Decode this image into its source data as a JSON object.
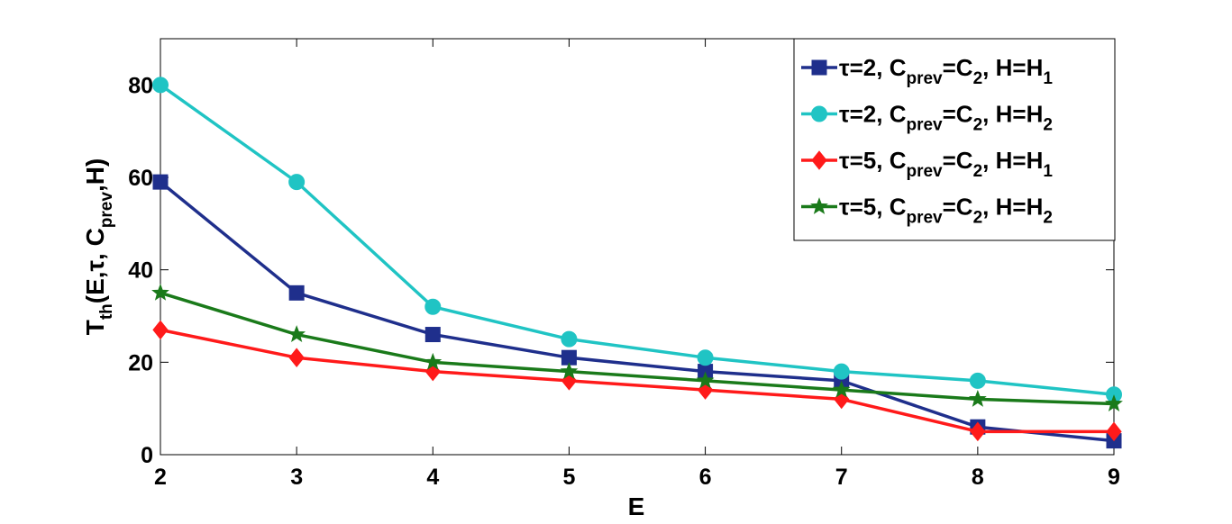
{
  "chart_data": {
    "type": "line",
    "x": [
      2,
      3,
      4,
      5,
      6,
      7,
      8,
      9
    ],
    "xlabel": "E",
    "ylabel_parts": {
      "main": "T",
      "sub1": "th",
      "mid": "(E,τ, C",
      "sub2": "prev",
      "tail": ",H)"
    },
    "xlim": [
      2,
      9
    ],
    "ylim": [
      0,
      90
    ],
    "xticks": [
      "2",
      "3",
      "4",
      "5",
      "6",
      "7",
      "8",
      "9"
    ],
    "yticks": [
      "0",
      "20",
      "40",
      "60",
      "80"
    ],
    "legend_position": "top-right",
    "grid": false,
    "series": [
      {
        "legend": {
          "a": "τ=2, C",
          "b": "prev",
          "c": "=C",
          "d": "2",
          "e": ", H=H",
          "f": "1"
        },
        "color": "#1f2f8c",
        "marker": "square",
        "values": [
          59,
          35,
          26,
          21,
          18,
          16,
          6,
          3
        ]
      },
      {
        "legend": {
          "a": "τ=2, C",
          "b": "prev",
          "c": "=C",
          "d": "2",
          "e": ", H=H",
          "f": "2"
        },
        "color": "#20c4c4",
        "marker": "circle",
        "values": [
          80,
          59,
          32,
          25,
          21,
          18,
          16,
          13
        ]
      },
      {
        "legend": {
          "a": "τ=5, C",
          "b": "prev",
          "c": "=C",
          "d": "2",
          "e": ", H=H",
          "f": "1"
        },
        "color": "#ff1a1a",
        "marker": "diamond",
        "values": [
          27,
          21,
          18,
          16,
          14,
          12,
          5,
          5
        ]
      },
      {
        "legend": {
          "a": "τ=5, C",
          "b": "prev",
          "c": "=C",
          "d": "2",
          "e": ", H=H",
          "f": "2"
        },
        "color": "#1a7a1a",
        "marker": "star",
        "values": [
          35,
          26,
          20,
          18,
          16,
          14,
          12,
          11
        ]
      }
    ]
  }
}
